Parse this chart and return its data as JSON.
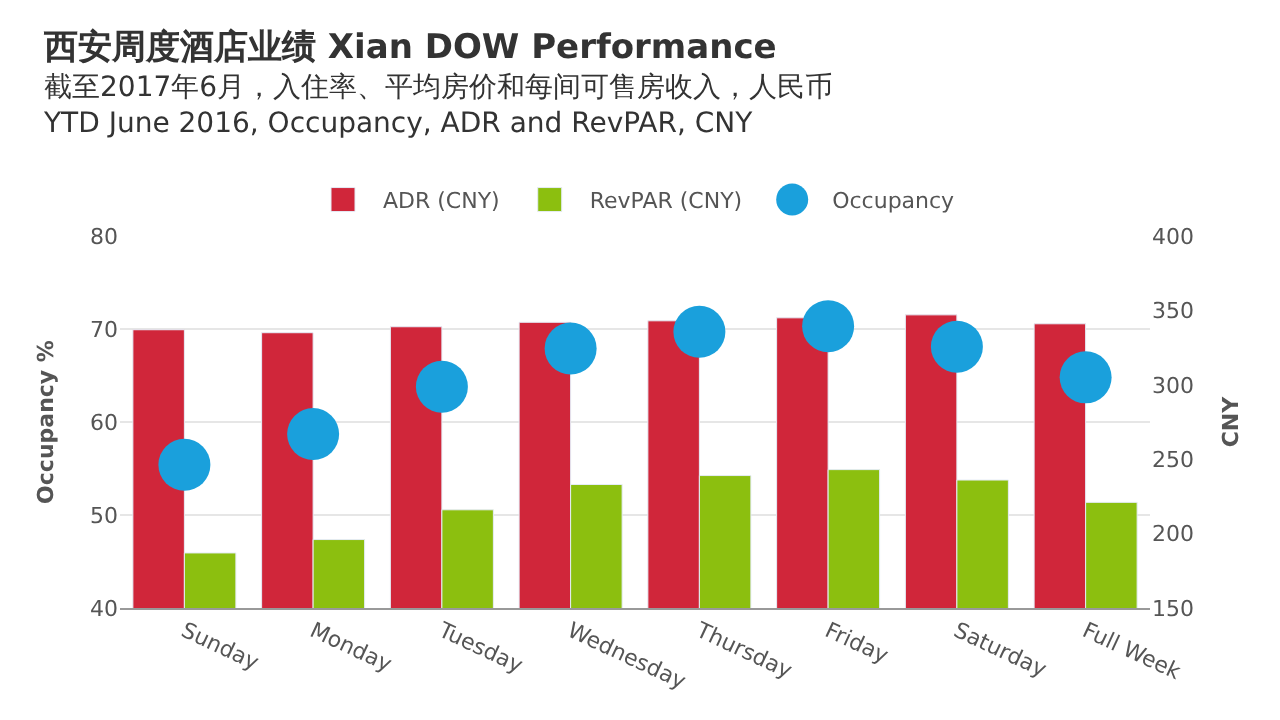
{
  "chart_data": {
    "type": "bar",
    "title": "西安周度酒店业绩 Xian DOW Performance",
    "subtitle": "截至2017年6月，入住率、平均房价和每间可售房收入，人民币\nYTD June 2016, Occupancy, ADR and RevPAR, CNY",
    "ylabel": "Occupancy %",
    "y2label": "CNY",
    "categories": [
      "Sunday",
      "Monday",
      "Tuesday",
      "Wednesday",
      "Thursday",
      "Friday",
      "Saturday",
      "Full Week"
    ],
    "series": [
      {
        "name": "ADR (CNY)",
        "axis": "y2",
        "color": "#d0263a",
        "values": [
          337,
          335,
          339,
          342,
          343,
          345,
          347,
          341
        ]
      },
      {
        "name": "RevPAR (CNY)",
        "axis": "y2",
        "color": "#8cbf0f",
        "values": [
          187,
          196,
          216,
          233,
          239,
          243,
          236,
          221
        ]
      },
      {
        "name": "Occupancy",
        "type": "scatter",
        "color": "#1aa0dc",
        "marker": "circle",
        "values": [
          55.4,
          58.7,
          63.8,
          67.9,
          69.7,
          70.3,
          68.1,
          64.8
        ]
      }
    ],
    "ylim": [
      40,
      80
    ],
    "yticks": [
      40,
      50,
      60,
      70,
      80
    ],
    "y2lim": [
      150,
      400
    ],
    "y2ticks": [
      150,
      200,
      250,
      300,
      350,
      400
    ],
    "grid": "y",
    "legend": "top"
  }
}
